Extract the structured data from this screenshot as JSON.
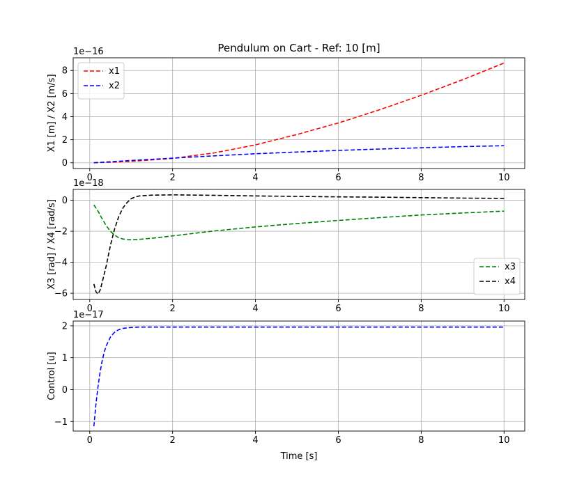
{
  "chart_data": [
    {
      "type": "line",
      "title": "Pendulum on Cart - Ref: 10 [m]",
      "xlabel": "",
      "ylabel": "X1 [m] / X2 [m/s]",
      "offset_text": "1e−16",
      "xlim": [
        -0.4,
        10.5
      ],
      "ylim": [
        -0.5,
        9.1
      ],
      "xticks": [
        0,
        2,
        4,
        6,
        8,
        10
      ],
      "xtick_labels": [
        "0",
        "2",
        "4",
        "6",
        "8",
        "10"
      ],
      "yticks": [
        0,
        2,
        4,
        6,
        8
      ],
      "ytick_labels": [
        "0",
        "2",
        "4",
        "6",
        "8"
      ],
      "grid": true,
      "legend_position": "upper left",
      "series": [
        {
          "name": "x1",
          "color": "#ff0000",
          "style": "dashed",
          "x": [
            0.1,
            1,
            2,
            3,
            4,
            5,
            6,
            7,
            8,
            9,
            10
          ],
          "y": [
            0.0,
            0.12,
            0.38,
            0.85,
            1.55,
            2.45,
            3.45,
            4.6,
            5.85,
            7.2,
            8.65
          ]
        },
        {
          "name": "x2",
          "color": "#0000ff",
          "style": "dashed",
          "x": [
            0.1,
            1,
            2,
            3,
            4,
            5,
            6,
            7,
            8,
            9,
            10
          ],
          "y": [
            0.0,
            0.2,
            0.4,
            0.6,
            0.78,
            0.93,
            1.07,
            1.19,
            1.3,
            1.4,
            1.48
          ]
        }
      ]
    },
    {
      "type": "line",
      "title": "",
      "xlabel": "",
      "ylabel": "X3 [rad] / X4 [rad/s]",
      "offset_text": "1e−18",
      "xlim": [
        -0.4,
        10.5
      ],
      "ylim": [
        -6.4,
        0.7
      ],
      "xticks": [
        0,
        2,
        4,
        6,
        8,
        10
      ],
      "xtick_labels": [
        "0",
        "2",
        "4",
        "6",
        "8",
        "10"
      ],
      "yticks": [
        0,
        -2,
        -4,
        -6
      ],
      "ytick_labels": [
        "0",
        "−2",
        "−4",
        "−6"
      ],
      "grid": true,
      "legend_position": "lower right",
      "series": [
        {
          "name": "x3",
          "color": "#008000",
          "style": "dashed",
          "x": [
            0.1,
            0.2,
            0.3,
            0.4,
            0.5,
            0.6,
            0.7,
            0.8,
            0.9,
            1.0,
            1.2,
            1.5,
            2,
            3,
            4,
            5,
            6,
            7,
            8,
            9,
            10
          ],
          "y": [
            -0.3,
            -0.7,
            -1.2,
            -1.65,
            -2.0,
            -2.25,
            -2.42,
            -2.5,
            -2.54,
            -2.55,
            -2.52,
            -2.45,
            -2.3,
            -1.98,
            -1.72,
            -1.5,
            -1.3,
            -1.12,
            -0.95,
            -0.82,
            -0.7
          ]
        },
        {
          "name": "x4",
          "color": "#000000",
          "style": "dashed",
          "x": [
            0.1,
            0.15,
            0.2,
            0.25,
            0.3,
            0.4,
            0.5,
            0.6,
            0.7,
            0.8,
            0.9,
            1.0,
            1.1,
            1.2,
            1.5,
            2,
            3,
            4,
            5,
            6,
            7,
            8,
            9,
            10
          ],
          "y": [
            -5.4,
            -5.9,
            -6.05,
            -5.8,
            -5.3,
            -4.2,
            -2.9,
            -1.85,
            -1.05,
            -0.5,
            -0.15,
            0.1,
            0.22,
            0.28,
            0.33,
            0.35,
            0.32,
            0.28,
            0.25,
            0.22,
            0.2,
            0.17,
            0.14,
            0.12
          ]
        }
      ]
    },
    {
      "type": "line",
      "title": "",
      "xlabel": "Time [s]",
      "ylabel": "Control [u]",
      "offset_text": "1e−17",
      "xlim": [
        -0.4,
        10.5
      ],
      "ylim": [
        -1.3,
        2.15
      ],
      "xticks": [
        0,
        2,
        4,
        6,
        8,
        10
      ],
      "xtick_labels": [
        "0",
        "2",
        "4",
        "6",
        "8",
        "10"
      ],
      "yticks": [
        -1,
        0,
        1,
        2
      ],
      "ytick_labels": [
        "−1",
        "0",
        "1",
        "2"
      ],
      "grid": true,
      "series": [
        {
          "name": "",
          "color": "#0000ff",
          "style": "dashed",
          "x": [
            0.1,
            0.15,
            0.2,
            0.25,
            0.3,
            0.35,
            0.4,
            0.5,
            0.6,
            0.7,
            0.8,
            1.0,
            1.2,
            1.5,
            2,
            4,
            6,
            8,
            10
          ],
          "y": [
            -1.15,
            -0.45,
            0.1,
            0.55,
            0.9,
            1.18,
            1.38,
            1.65,
            1.8,
            1.88,
            1.92,
            1.95,
            1.96,
            1.96,
            1.96,
            1.96,
            1.96,
            1.96,
            1.96
          ]
        }
      ]
    }
  ]
}
